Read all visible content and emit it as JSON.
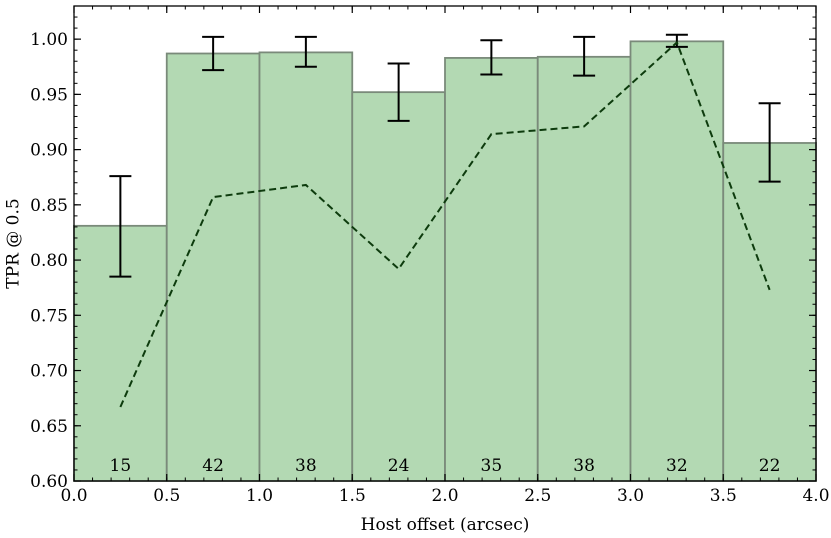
{
  "chart_data": {
    "type": "bar",
    "xlabel": "Host offset (arcsec)",
    "ylabel": "TPR @ 0.5",
    "xlim": [
      0.0,
      4.0
    ],
    "ylim": [
      0.6,
      1.03
    ],
    "x_ticks": [
      "0.0",
      "0.5",
      "1.0",
      "1.5",
      "2.0",
      "2.5",
      "3.0",
      "3.5",
      "4.0"
    ],
    "y_ticks": [
      "0.60",
      "0.65",
      "0.70",
      "0.75",
      "0.80",
      "0.85",
      "0.90",
      "0.95",
      "1.00"
    ],
    "bin_edges": [
      0.0,
      0.5,
      1.0,
      1.5,
      2.0,
      2.5,
      3.0,
      3.5,
      4.0
    ],
    "bar_color": "#b3d9b3",
    "bar_edge_color": "#7a8a7a",
    "series": [
      {
        "type": "bar",
        "values": [
          0.831,
          0.987,
          0.988,
          0.952,
          0.983,
          0.984,
          0.998,
          0.906
        ],
        "error_low": [
          0.785,
          0.972,
          0.975,
          0.926,
          0.968,
          0.967,
          0.993,
          0.871
        ],
        "error_high": [
          0.876,
          1.002,
          1.002,
          0.978,
          0.999,
          1.002,
          1.004,
          0.942
        ],
        "counts": [
          "15",
          "42",
          "38",
          "24",
          "35",
          "38",
          "32",
          "22"
        ]
      },
      {
        "type": "line",
        "style": "dashed",
        "color": "#0d3b0d",
        "x": [
          0.25,
          0.75,
          1.25,
          1.75,
          2.25,
          2.75,
          3.25,
          3.75
        ],
        "values": [
          0.667,
          0.857,
          0.868,
          0.792,
          0.914,
          0.921,
          0.997,
          0.773
        ]
      }
    ],
    "grid": false,
    "legend": "none"
  }
}
